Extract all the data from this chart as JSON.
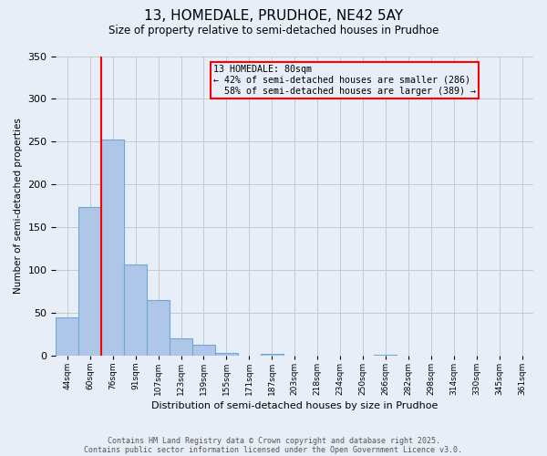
{
  "title1": "13, HOMEDALE, PRUDHOE, NE42 5AY",
  "title2": "Size of property relative to semi-detached houses in Prudhoe",
  "xlabel": "Distribution of semi-detached houses by size in Prudhoe",
  "ylabel": "Number of semi-detached properties",
  "property_size": 80,
  "pct_smaller": 42,
  "pct_larger": 58,
  "count_smaller": 286,
  "count_larger": 389,
  "bar_labels": [
    "44sqm",
    "60sqm",
    "76sqm",
    "91sqm",
    "107sqm",
    "123sqm",
    "139sqm",
    "155sqm",
    "171sqm",
    "187sqm",
    "203sqm",
    "218sqm",
    "234sqm",
    "250sqm",
    "266sqm",
    "282sqm",
    "298sqm",
    "314sqm",
    "330sqm",
    "345sqm",
    "361sqm"
  ],
  "bar_values": [
    44,
    174,
    252,
    106,
    65,
    20,
    12,
    3,
    0,
    2,
    0,
    0,
    0,
    0,
    1,
    0,
    0,
    0,
    0,
    0,
    0
  ],
  "bar_color": "#aec6e8",
  "bar_edge_color": "#6aaad4",
  "vline_x": 1.5,
  "vline_color": "red",
  "ylim": [
    0,
    350
  ],
  "yticks": [
    0,
    50,
    100,
    150,
    200,
    250,
    300,
    350
  ],
  "annotation_box_color": "red",
  "footnote1": "Contains HM Land Registry data © Crown copyright and database right 2025.",
  "footnote2": "Contains public sector information licensed under the Open Government Licence v3.0.",
  "grid_color": "#c8c8c8",
  "background_color": "#e8eef8"
}
